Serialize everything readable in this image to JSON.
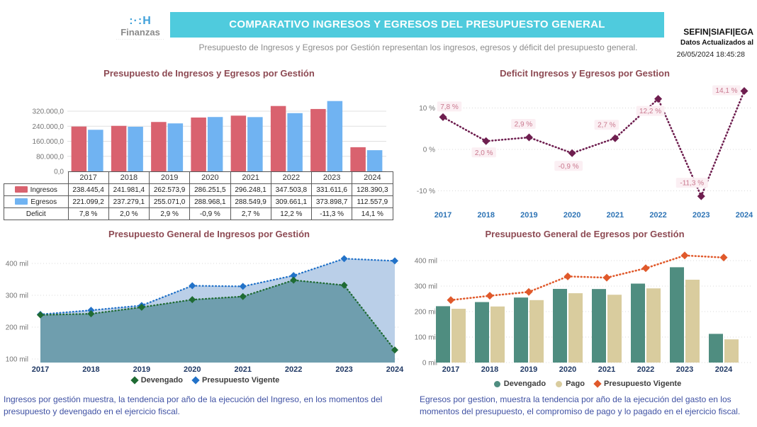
{
  "header": {
    "logo": {
      "mark": ":·:H",
      "name": "Finanzas",
      "tagline": "··········· ·· ···········"
    },
    "banner_title": "COMPARATIVO INGRESOS Y EGRESOS DEL PRESUPUESTO GENERAL",
    "subtitle": "Presupuesto de Ingresos y Egresos por Gestión representan los ingresos, egresos y déficit del presupuesto general.",
    "meta": {
      "org": "SEFIN|SIAFI|EGA",
      "updated_label": "Datos Actualizados al",
      "updated_value": "26/05/2024 18:45:28"
    }
  },
  "years": [
    "2017",
    "2018",
    "2019",
    "2020",
    "2021",
    "2022",
    "2023",
    "2024"
  ],
  "colors": {
    "banner": "#4fcbdd",
    "title": "#8d4a53",
    "ingresos_bar": "#d9626f",
    "egresos_bar": "#70b3f2",
    "deficit_line": "#6e1e4f",
    "deficit_label_text": "#c9788e",
    "deficit_label_bg": "#fbeff3",
    "axis_year_blue": "#2e74b5",
    "axis_year_navy": "#1f3864",
    "axis_gray": "#757575",
    "area_devengado_fill": "#6f9eae",
    "area_vigente_fill": "#bacfe8",
    "devengado_green": "#1f6b33",
    "vigente_blue": "#2272c8",
    "egresos_devengado": "#4f8d80",
    "egresos_pago": "#d9cc9e",
    "egresos_vigente": "#e0592b",
    "footnote": "#3f51a3"
  },
  "chart_data": [
    {
      "id": "ingresos_egresos_bar",
      "type": "bar",
      "title": "Presupuesto de Ingresos y Egresos por Gestión",
      "categories": [
        "2017",
        "2018",
        "2019",
        "2020",
        "2021",
        "2022",
        "2023",
        "2024"
      ],
      "series": [
        {
          "name": "Ingresos",
          "color": "#d9626f",
          "values": [
            238445.4,
            241981.4,
            262573.9,
            286251.5,
            296248.1,
            347503.8,
            331611.6,
            128390.3
          ]
        },
        {
          "name": "Egresos",
          "color": "#70b3f2",
          "values": [
            221099.2,
            237279.1,
            255071.0,
            288968.1,
            288549.9,
            309661.1,
            373898.7,
            112557.9
          ]
        }
      ],
      "yticks": [
        {
          "label": "320.000,0",
          "value": 320000
        },
        {
          "label": "240.000,0",
          "value": 240000
        },
        {
          "label": "160.000,0",
          "value": 160000
        },
        {
          "label": "80.000,0",
          "value": 80000
        },
        {
          "label": "0,0",
          "value": 0
        }
      ],
      "ylim": [
        0,
        390000
      ],
      "grid": true,
      "legend_position": "table-left",
      "table": {
        "row_labels": [
          "Ingresos",
          "Egresos",
          "Deficit"
        ],
        "rows": [
          [
            "238.445,4",
            "241.981,4",
            "262.573,9",
            "286.251,5",
            "296.248,1",
            "347.503,8",
            "331.611,6",
            "128.390,3"
          ],
          [
            "221.099,2",
            "237.279,1",
            "255.071,0",
            "288.968,1",
            "288.549,9",
            "309.661,1",
            "373.898,7",
            "112.557,9"
          ],
          [
            "7,8 %",
            "2,0 %",
            "2,9 %",
            "-0,9 %",
            "2,7 %",
            "12,2 %",
            "-11,3 %",
            "14,1 %"
          ]
        ]
      }
    },
    {
      "id": "deficit_line",
      "type": "line",
      "title": "Deficit Ingresos y Egresos por Gestion",
      "categories": [
        "2017",
        "2018",
        "2019",
        "2020",
        "2021",
        "2022",
        "2023",
        "2024"
      ],
      "values": [
        7.8,
        2.0,
        2.9,
        -0.9,
        2.7,
        12.2,
        -11.3,
        14.1
      ],
      "point_labels": [
        "7,8 %",
        "2,0 %",
        "2,9 %",
        "-0,9 %",
        "2,7 %",
        "12,2 %",
        "-11,3 %",
        "14,1 %"
      ],
      "yticks": [
        {
          "label": "10 %",
          "value": 10
        },
        {
          "label": "0 %",
          "value": 0
        },
        {
          "label": "-10 %",
          "value": -10
        }
      ],
      "ylim": [
        -14,
        16
      ],
      "grid": "dotted",
      "line_color": "#6e1e4f",
      "marker": "diamond"
    },
    {
      "id": "ingresos_area",
      "type": "area",
      "title": "Presupuesto General de Ingresos por Gestión",
      "categories": [
        "2017",
        "2018",
        "2019",
        "2020",
        "2021",
        "2022",
        "2023",
        "2024"
      ],
      "unit": "mil",
      "series": [
        {
          "name": "Presupuesto Vigente",
          "marker": "diamond",
          "color": "#2272c8",
          "fill": "#bacfe8",
          "values": [
            240,
            253,
            268,
            330,
            328,
            362,
            415,
            408
          ]
        },
        {
          "name": "Devengado",
          "marker": "diamond",
          "color": "#1f6b33",
          "fill": "#6f9eae",
          "values": [
            238.4,
            242.0,
            262.6,
            286.3,
            296.2,
            347.5,
            331.6,
            128.4
          ]
        }
      ],
      "yticks": [
        {
          "label": "400 mil",
          "value": 400
        },
        {
          "label": "300 mil",
          "value": 300
        },
        {
          "label": "200 mil",
          "value": 200
        },
        {
          "label": "100 mil",
          "value": 100
        }
      ],
      "ylim": [
        90,
        430
      ],
      "grid": "dotted",
      "legend": [
        "Devengado",
        "Presupuesto Vigente"
      ],
      "legend_position": "bottom"
    },
    {
      "id": "egresos_combo",
      "type": "bar",
      "title": "Presupuesto General de Egresos por Gestión",
      "categories": [
        "2017",
        "2018",
        "2019",
        "2020",
        "2021",
        "2022",
        "2023",
        "2024"
      ],
      "unit": "mil",
      "series": [
        {
          "name": "Devengado",
          "kind": "bar",
          "color": "#4f8d80",
          "values": [
            221.1,
            237.3,
            255.1,
            289.0,
            288.5,
            309.7,
            373.9,
            112.6
          ]
        },
        {
          "name": "Pago",
          "kind": "bar",
          "color": "#d9cc9e",
          "values": [
            211,
            220,
            245,
            272,
            266,
            291,
            325,
            91
          ]
        },
        {
          "name": "Presupuesto Vigente",
          "kind": "line",
          "marker": "diamond",
          "color": "#e0592b",
          "values": [
            245,
            262,
            277,
            338,
            333,
            370,
            420,
            412
          ]
        }
      ],
      "yticks": [
        {
          "label": "400 mil",
          "value": 400
        },
        {
          "label": "300 mil",
          "value": 300
        },
        {
          "label": "200 mil",
          "value": 200
        },
        {
          "label": "100 mil",
          "value": 100
        },
        {
          "label": "0 mil",
          "value": 0
        }
      ],
      "ylim": [
        0,
        430
      ],
      "grid": "dotted",
      "legend": [
        "Devengado",
        "Pago",
        "Presupuesto Vigente"
      ],
      "legend_position": "bottom"
    }
  ],
  "footnotes": {
    "ingresos": "Ingresos por gestión muestra, la tendencia por año de la ejecución del Ingreso, en los momentos del presupuesto y devengado en el ejercicio fiscal.",
    "egresos": "Egresos por gestion, muestra la tendencia por año de la ejecución del gasto en los momentos del presupuesto, el compromiso de pago y lo pagado en el ejercicio fiscal."
  }
}
